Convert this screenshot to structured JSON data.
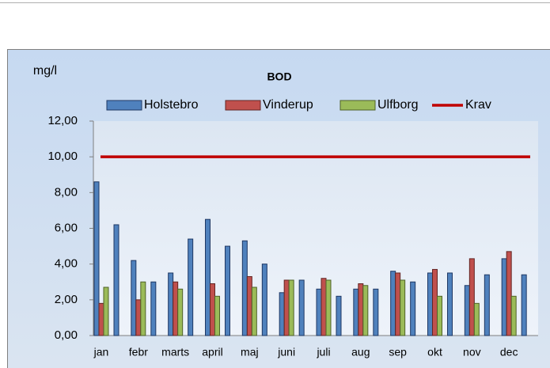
{
  "chart_data": {
    "type": "bar",
    "title": "BOD",
    "y_label": "mg/l",
    "categories": [
      "jan",
      "febr",
      "marts",
      "april",
      "maj",
      "juni",
      "juli",
      "aug",
      "sep",
      "okt",
      "nov",
      "dec"
    ],
    "series": [
      {
        "name": "Holstebro",
        "color": "#4f81bd",
        "values": [
          8.6,
          4.2,
          3.5,
          6.5,
          5.3,
          2.4,
          2.6,
          2.6,
          3.6,
          3.5,
          2.8,
          4.3
        ]
      },
      {
        "name": "Vinderup",
        "color": "#c0504d",
        "values": [
          1.8,
          2.0,
          3.0,
          2.9,
          3.3,
          3.1,
          3.2,
          2.9,
          3.5,
          3.7,
          4.3,
          4.7
        ]
      },
      {
        "name": "Ulfborg",
        "color": "#9bbb59",
        "values": [
          2.7,
          3.0,
          2.6,
          2.2,
          2.7,
          3.1,
          3.1,
          2.8,
          3.1,
          2.2,
          1.8,
          2.2
        ]
      },
      {
        "color": "#4f81bd",
        "values": [
          6.2,
          3.0,
          5.4,
          5.0,
          4.0,
          3.1,
          2.2,
          2.6,
          3.0,
          3.5,
          3.4,
          3.4
        ]
      },
      {
        "name": "Krav",
        "type": "line",
        "color": "#c00000",
        "values": [
          10,
          10,
          10,
          10,
          10,
          10,
          10,
          10,
          10,
          10,
          10,
          10
        ]
      }
    ],
    "ylim": [
      0,
      12
    ],
    "yticks": [
      {
        "value": 0,
        "label": "0,00"
      },
      {
        "value": 2,
        "label": "2,00"
      },
      {
        "value": 4,
        "label": "4,00"
      },
      {
        "value": 6,
        "label": "6,00"
      },
      {
        "value": 8,
        "label": "8,00"
      },
      {
        "value": 10,
        "label": "10,00"
      },
      {
        "value": 12,
        "label": "12,00"
      }
    ],
    "grid": false,
    "legend": "top"
  }
}
